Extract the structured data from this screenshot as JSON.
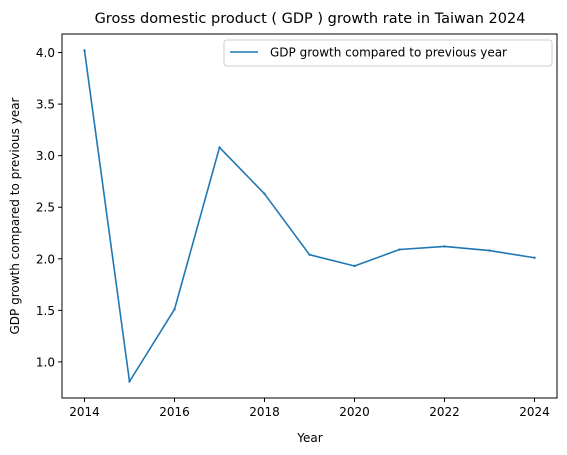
{
  "chart_data": {
    "type": "line",
    "title": "Gross domestic product ( GDP ) growth rate in Taiwan 2024",
    "xlabel": "Year",
    "ylabel": "GDP growth compared to previous year",
    "x": [
      2014,
      2015,
      2016,
      2017,
      2018,
      2019,
      2020,
      2021,
      2022,
      2023,
      2024
    ],
    "series": [
      {
        "name": "GDP growth compared to previous year",
        "color": "#1f77b4",
        "values": [
          4.02,
          0.81,
          1.51,
          3.08,
          2.63,
          2.04,
          1.93,
          2.09,
          2.12,
          2.08,
          2.01
        ]
      }
    ],
    "xlim": [
      2013.5,
      2024.5
    ],
    "ylim": [
      0.65,
      4.18
    ],
    "xticks": [
      2014,
      2016,
      2018,
      2020,
      2022,
      2024
    ],
    "xtick_labels": [
      "2014",
      "2016",
      "2018",
      "2020",
      "2022",
      "2024"
    ],
    "yticks": [
      1.0,
      1.5,
      2.0,
      2.5,
      3.0,
      3.5,
      4.0
    ],
    "ytick_labels": [
      "1.0",
      "1.5",
      "2.0",
      "2.5",
      "3.0",
      "3.5",
      "4.0"
    ],
    "grid": false,
    "legend": "top-right"
  }
}
